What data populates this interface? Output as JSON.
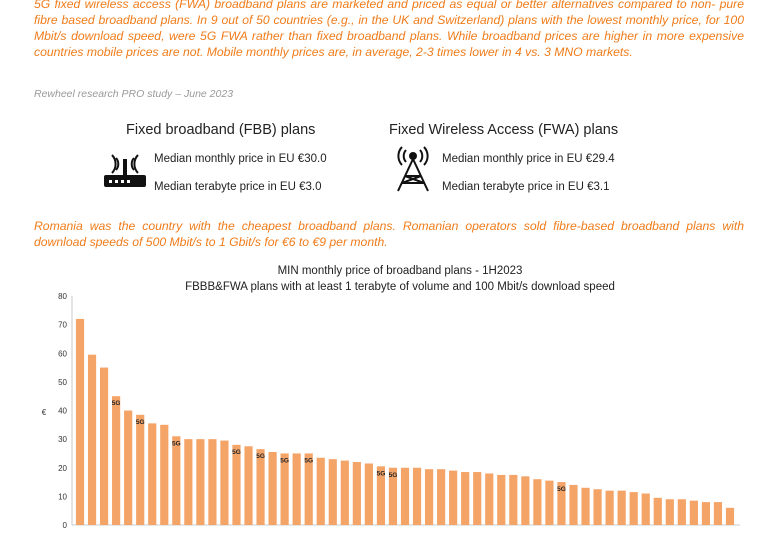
{
  "intro_text": "5G fixed wireless access (FWA) broadband plans are marketed and priced as equal or better alternatives compared to non- pure fibre based broadband plans. In 9 out of 50 countries (e.g., in the UK and Switzerland) plans with the lowest monthly price, for 100 Mbit/s download speed, were 5G FWA rather than fixed broadband plans. While broadband prices are higher in more expensive countries mobile prices are not. Mobile monthly prices are, in average, 2-3 times lower in 4 vs. 3 MNO markets.",
  "source_note": "Rewheel research PRO study – June 2023",
  "fbb": {
    "title": "Fixed broadband (FBB) plans",
    "median_monthly": "Median monthly price in EU €30.0",
    "median_terabyte": "Median terabyte price in EU €3.0",
    "icon": "router-icon"
  },
  "fwa": {
    "title": "Fixed Wireless Access (FWA) plans",
    "median_monthly": "Median monthly price in EU €29.4",
    "median_terabyte": "Median terabyte price in EU €3.1",
    "icon": "antenna-tower-icon"
  },
  "highlight_text": "Romania was the country with the cheapest broadband plans. Romanian operators sold fibre-based broadband plans with download speeds of 500 Mbit/s to 1 Gbit/s for €6 to €9 per month.",
  "colors": {
    "accent": "#f07c1a",
    "bar": "#f5a468",
    "source": "#9a9a9a"
  },
  "chart_data": {
    "type": "bar",
    "title": "MIN monthly price of broadband plans - 1H2023",
    "subtitle": "FBBB&FWA plans with at least 1 terabyte of volume and 100 Mbit/s download speed",
    "ylabel": "€",
    "ylim": [
      0,
      80
    ],
    "yticks": [
      0,
      10,
      20,
      30,
      40,
      50,
      60,
      70,
      80
    ],
    "grid": false,
    "bar_annotation": "5G",
    "values": [
      72,
      59.5,
      55,
      45,
      40,
      38.5,
      35.5,
      35,
      31,
      30,
      30,
      30,
      29.5,
      28,
      27.5,
      26.5,
      25.5,
      25,
      25,
      25,
      23.5,
      23,
      22.5,
      22,
      21.5,
      20.5,
      20,
      20,
      20,
      19.5,
      19.5,
      19,
      18.5,
      18.5,
      18,
      17.5,
      17.5,
      17,
      16,
      15.5,
      15,
      14,
      13,
      12.5,
      12,
      12,
      11.5,
      11,
      9.5,
      9,
      9,
      8.5,
      8,
      8,
      6
    ],
    "fwa_5g_index": [
      3,
      5,
      8,
      13,
      15,
      17,
      19,
      25,
      26,
      40
    ]
  }
}
